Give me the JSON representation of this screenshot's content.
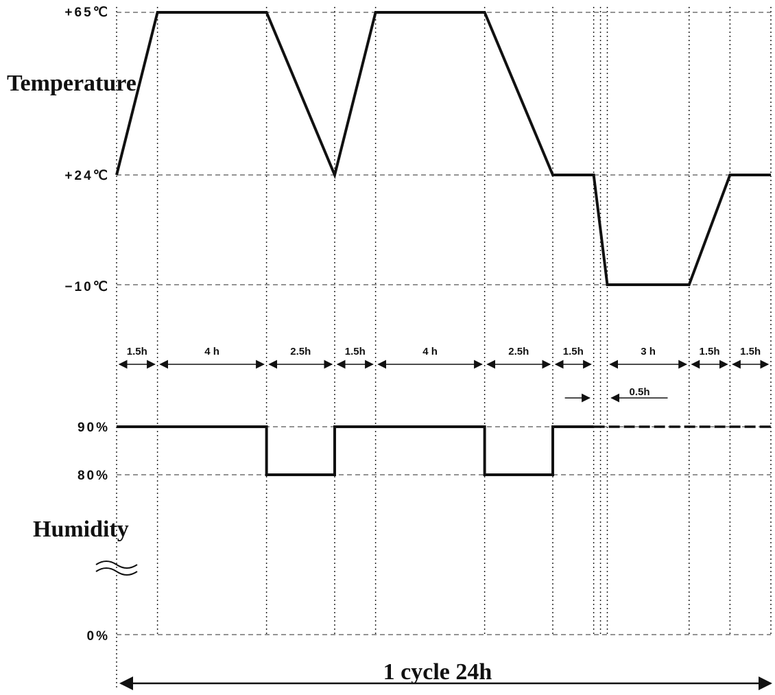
{
  "labels": {
    "temperature": "Temperature",
    "humidity": "Humidity",
    "t_max": "+65℃",
    "t_mid": "+24℃",
    "t_min": "−10℃",
    "h_high": "90%",
    "h_low": "80%",
    "h_zero": "0%",
    "cycle": "1 cycle  24h"
  },
  "durations": [
    {
      "label": "1.5h",
      "from": 0,
      "to": 1.5
    },
    {
      "label": "4 h",
      "from": 1.5,
      "to": 5.5
    },
    {
      "label": "2.5h",
      "from": 5.5,
      "to": 8
    },
    {
      "label": "1.5h",
      "from": 8,
      "to": 9.5
    },
    {
      "label": "4 h",
      "from": 9.5,
      "to": 13.5
    },
    {
      "label": "2.5h",
      "from": 13.5,
      "to": 16
    },
    {
      "label": "1.5h",
      "from": 16,
      "to": 17.5
    },
    {
      "label": "3 h",
      "from": 18,
      "to": 21
    },
    {
      "label": "1.5h",
      "from": 21,
      "to": 22.5
    },
    {
      "label": "1.5h",
      "from": 22.5,
      "to": 24
    }
  ],
  "transition_note": {
    "label": "0.5h",
    "from": 17.5,
    "to": 18
  },
  "chart_data": {
    "type": "line",
    "xlabel": "",
    "units": {
      "x": "h",
      "temperature": "℃",
      "humidity": "%"
    },
    "cycle_hours": 24,
    "series": [
      {
        "name": "Temperature",
        "points": [
          [
            0,
            24
          ],
          [
            1.5,
            65
          ],
          [
            5.5,
            65
          ],
          [
            8,
            24
          ],
          [
            9.5,
            65
          ],
          [
            13.5,
            65
          ],
          [
            16,
            24
          ],
          [
            17.5,
            24
          ],
          [
            18,
            -10
          ],
          [
            21,
            -10
          ],
          [
            22.5,
            24
          ],
          [
            24,
            24
          ]
        ]
      },
      {
        "name": "Humidity",
        "points": [
          [
            0,
            90
          ],
          [
            5.5,
            90
          ],
          [
            5.5,
            80
          ],
          [
            8,
            80
          ],
          [
            8,
            90
          ],
          [
            13.5,
            90
          ],
          [
            13.5,
            80
          ],
          [
            16,
            80
          ],
          [
            16,
            90
          ],
          [
            17.5,
            90
          ]
        ],
        "uncontrolled_points": [
          [
            17.5,
            90
          ],
          [
            24,
            90
          ]
        ]
      }
    ],
    "vertical_grid_hours": [
      0,
      1.5,
      5.5,
      8,
      9.5,
      13.5,
      16,
      17.5,
      17.75,
      18,
      21,
      22.5,
      24
    ],
    "temperature_levels": [
      65,
      24,
      -10
    ],
    "humidity_levels": [
      90,
      80,
      0
    ]
  }
}
